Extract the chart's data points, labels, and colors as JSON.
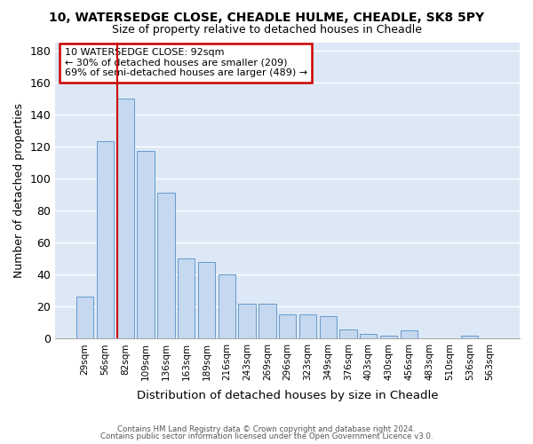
{
  "title1": "10, WATERSEDGE CLOSE, CHEADLE HULME, CHEADLE, SK8 5PY",
  "title2": "Size of property relative to detached houses in Cheadle",
  "xlabel": "Distribution of detached houses by size in Cheadle",
  "ylabel": "Number of detached properties",
  "categories": [
    "29sqm",
    "56sqm",
    "82sqm",
    "109sqm",
    "136sqm",
    "163sqm",
    "189sqm",
    "216sqm",
    "243sqm",
    "269sqm",
    "296sqm",
    "323sqm",
    "349sqm",
    "376sqm",
    "403sqm",
    "430sqm",
    "456sqm",
    "483sqm",
    "510sqm",
    "536sqm",
    "563sqm"
  ],
  "values": [
    26,
    123,
    150,
    117,
    91,
    50,
    48,
    40,
    22,
    22,
    15,
    15,
    14,
    6,
    3,
    2,
    5,
    0,
    0,
    2,
    0
  ],
  "bar_color": "#c5d8f0",
  "bar_edge_color": "#6699cc",
  "property_line_index": 2,
  "annotation_line1": "10 WATERSEDGE CLOSE: 92sqm",
  "annotation_line2": "← 30% of detached houses are smaller (209)",
  "annotation_line3": "69% of semi-detached houses are larger (489) →",
  "annotation_box_color": "#cc0000",
  "footer1": "Contains HM Land Registry data © Crown copyright and database right 2024.",
  "footer2": "Contains public sector information licensed under the Open Government Licence v3.0.",
  "ylim": [
    0,
    185
  ],
  "yticks": [
    0,
    20,
    40,
    60,
    80,
    100,
    120,
    140,
    160,
    180
  ],
  "plot_bg_color": "#dce8f5",
  "fig_bg_color": "#ffffff",
  "grid_color": "#ffffff"
}
